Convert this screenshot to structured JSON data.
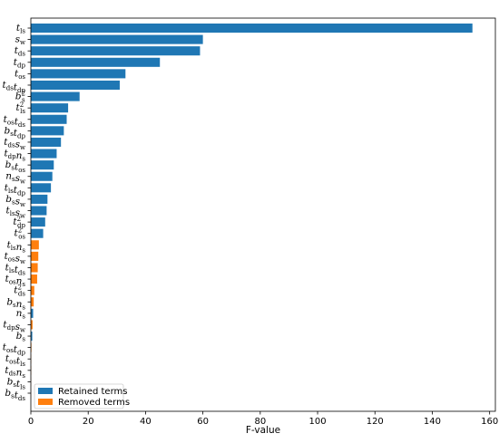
{
  "chart_data": {
    "type": "bar",
    "orientation": "horizontal",
    "xlabel": "F-value",
    "xlim": [
      0,
      162
    ],
    "xticks": [
      0,
      20,
      40,
      60,
      80,
      100,
      120,
      140,
      160
    ],
    "grid": false,
    "legend_position": "bottom-left",
    "colors": {
      "retained": "#1f77b4",
      "removed": "#ff7f0e"
    },
    "legend": [
      {
        "key": "retained",
        "label": "Retained terms"
      },
      {
        "key": "removed",
        "label": "Removed terms"
      }
    ],
    "bars": [
      {
        "base": "t",
        "sub": "ls",
        "value": 154,
        "group": "retained"
      },
      {
        "base": "s",
        "sub": "w",
        "value": 60,
        "group": "retained"
      },
      {
        "base": "t",
        "sub": "ds",
        "value": 59,
        "group": "retained"
      },
      {
        "base": "t",
        "sub": "dp",
        "value": 45,
        "group": "retained"
      },
      {
        "base": "t",
        "sub": "os",
        "value": 33,
        "group": "retained"
      },
      {
        "parts": [
          {
            "base": "t",
            "sub": "ds"
          },
          {
            "base": "t",
            "sub": "dp"
          }
        ],
        "value": 31,
        "group": "retained"
      },
      {
        "base": "b",
        "sub": "s",
        "sup": "2",
        "value": 17,
        "group": "retained"
      },
      {
        "base": "t",
        "sub": "ls",
        "sup": "2",
        "value": 13,
        "group": "retained"
      },
      {
        "parts": [
          {
            "base": "t",
            "sub": "os"
          },
          {
            "base": "t",
            "sub": "ds"
          }
        ],
        "value": 12.5,
        "group": "retained"
      },
      {
        "parts": [
          {
            "base": "b",
            "sub": "s"
          },
          {
            "base": "t",
            "sub": "dp"
          }
        ],
        "value": 11.5,
        "group": "retained"
      },
      {
        "parts": [
          {
            "base": "t",
            "sub": "ds"
          },
          {
            "base": "s",
            "sub": "w"
          }
        ],
        "value": 10.5,
        "group": "retained"
      },
      {
        "parts": [
          {
            "base": "t",
            "sub": "dp"
          },
          {
            "base": "n",
            "sub": "s"
          }
        ],
        "value": 9,
        "group": "retained"
      },
      {
        "parts": [
          {
            "base": "b",
            "sub": "s"
          },
          {
            "base": "t",
            "sub": "os"
          }
        ],
        "value": 8,
        "group": "retained"
      },
      {
        "parts": [
          {
            "base": "n",
            "sub": "s"
          },
          {
            "base": "s",
            "sub": "w"
          }
        ],
        "value": 7.5,
        "group": "retained"
      },
      {
        "parts": [
          {
            "base": "t",
            "sub": "ls"
          },
          {
            "base": "t",
            "sub": "dp"
          }
        ],
        "value": 7,
        "group": "retained"
      },
      {
        "parts": [
          {
            "base": "b",
            "sub": "s"
          },
          {
            "base": "s",
            "sub": "w"
          }
        ],
        "value": 5.8,
        "group": "retained"
      },
      {
        "parts": [
          {
            "base": "t",
            "sub": "ls"
          },
          {
            "base": "s",
            "sub": "w"
          }
        ],
        "value": 5.5,
        "group": "retained"
      },
      {
        "base": "t",
        "sub": "dp",
        "sup": "2",
        "value": 5,
        "group": "retained"
      },
      {
        "base": "t",
        "sub": "os",
        "sup": "2",
        "value": 4.3,
        "group": "retained"
      },
      {
        "parts": [
          {
            "base": "t",
            "sub": "ls"
          },
          {
            "base": "n",
            "sub": "s"
          }
        ],
        "value": 2.8,
        "group": "removed"
      },
      {
        "parts": [
          {
            "base": "t",
            "sub": "os"
          },
          {
            "base": "s",
            "sub": "w"
          }
        ],
        "value": 2.6,
        "group": "removed"
      },
      {
        "parts": [
          {
            "base": "t",
            "sub": "ls"
          },
          {
            "base": "t",
            "sub": "ds"
          }
        ],
        "value": 2.4,
        "group": "removed"
      },
      {
        "parts": [
          {
            "base": "t",
            "sub": "os"
          },
          {
            "base": "n",
            "sub": "s"
          }
        ],
        "value": 2.2,
        "group": "removed"
      },
      {
        "base": "t",
        "sub": "ds",
        "sup": "2",
        "value": 1.2,
        "group": "removed"
      },
      {
        "parts": [
          {
            "base": "b",
            "sub": "s"
          },
          {
            "base": "n",
            "sub": "s"
          }
        ],
        "value": 1.0,
        "group": "removed"
      },
      {
        "base": "n",
        "sub": "s",
        "value": 0.8,
        "group": "retained"
      },
      {
        "parts": [
          {
            "base": "t",
            "sub": "dp"
          },
          {
            "base": "s",
            "sub": "w"
          }
        ],
        "value": 0.6,
        "group": "removed"
      },
      {
        "base": "b",
        "sub": "s",
        "value": 0.5,
        "group": "retained"
      },
      {
        "parts": [
          {
            "base": "t",
            "sub": "os"
          },
          {
            "base": "t",
            "sub": "dp"
          }
        ],
        "value": 0.2,
        "group": "removed"
      },
      {
        "parts": [
          {
            "base": "t",
            "sub": "os"
          },
          {
            "base": "t",
            "sub": "ls"
          }
        ],
        "value": 0.1,
        "group": "removed"
      },
      {
        "parts": [
          {
            "base": "t",
            "sub": "ds"
          },
          {
            "base": "n",
            "sub": "s"
          }
        ],
        "value": 0.1,
        "group": "removed"
      },
      {
        "parts": [
          {
            "base": "b",
            "sub": "s"
          },
          {
            "base": "t",
            "sub": "ls"
          }
        ],
        "value": 0.05,
        "group": "removed"
      },
      {
        "parts": [
          {
            "base": "b",
            "sub": "s"
          },
          {
            "base": "t",
            "sub": "ds"
          }
        ],
        "value": 0.05,
        "group": "removed"
      }
    ]
  }
}
